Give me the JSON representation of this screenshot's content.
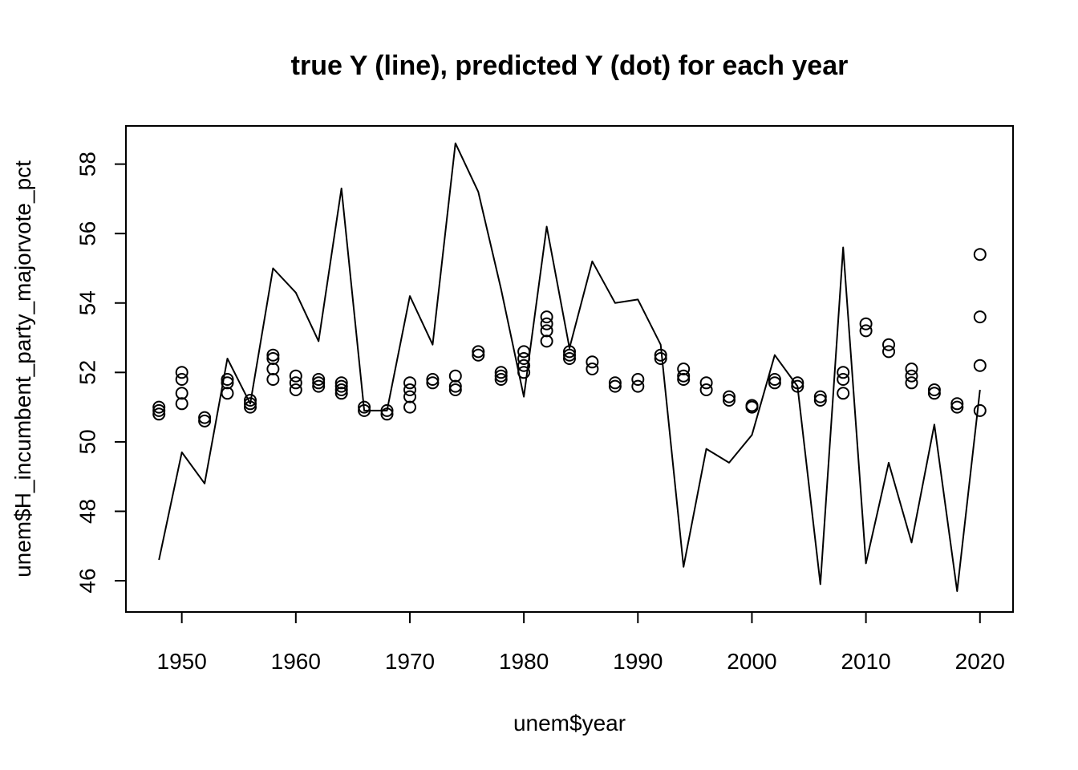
{
  "chart_data": {
    "type": "line",
    "title": "true Y (line), predicted Y (dot) for each year",
    "xlabel": "unem$year",
    "ylabel": "unem$H_incumbent_party_majorvote_pct",
    "xlim": [
      1945.1,
      2022.9
    ],
    "ylim": [
      45.1,
      59.1
    ],
    "x_ticks": [
      1950,
      1960,
      1970,
      1980,
      1990,
      2000,
      2010,
      2020
    ],
    "y_ticks": [
      46,
      48,
      50,
      52,
      54,
      56,
      58
    ],
    "legend": "none",
    "grid": false,
    "series": [
      {
        "kind": "line",
        "x": [
          1948,
          1950,
          1952,
          1954,
          1956,
          1958,
          1960,
          1962,
          1964,
          1966,
          1968,
          1970,
          1972,
          1974,
          1976,
          1978,
          1980,
          1982,
          1984,
          1986,
          1988,
          1990,
          1992,
          1994,
          1996,
          1998,
          2000,
          2002,
          2004,
          2006,
          2008,
          2010,
          2012,
          2014,
          2016,
          2018,
          2020
        ],
        "values": [
          46.6,
          49.7,
          48.8,
          52.4,
          51.1,
          55.0,
          54.3,
          52.9,
          57.3,
          50.9,
          50.9,
          54.2,
          52.8,
          58.6,
          57.2,
          54.4,
          51.3,
          56.2,
          52.7,
          55.2,
          54.0,
          54.1,
          52.8,
          46.4,
          49.8,
          49.4,
          50.2,
          52.5,
          51.6,
          45.9,
          55.6,
          46.5,
          49.4,
          47.1,
          50.5,
          45.7,
          51.5
        ]
      },
      {
        "kind": "points",
        "points": [
          [
            1948,
            50.8
          ],
          [
            1948,
            50.9
          ],
          [
            1948,
            51.0
          ],
          [
            1950,
            51.1
          ],
          [
            1950,
            51.4
          ],
          [
            1950,
            51.8
          ],
          [
            1950,
            52.0
          ],
          [
            1952,
            50.6
          ],
          [
            1952,
            50.7
          ],
          [
            1954,
            51.4
          ],
          [
            1954,
            51.7
          ],
          [
            1954,
            51.8
          ],
          [
            1956,
            51.0
          ],
          [
            1956,
            51.1
          ],
          [
            1956,
            51.2
          ],
          [
            1958,
            51.8
          ],
          [
            1958,
            52.1
          ],
          [
            1958,
            52.4
          ],
          [
            1958,
            52.5
          ],
          [
            1960,
            51.5
          ],
          [
            1960,
            51.7
          ],
          [
            1960,
            51.9
          ],
          [
            1962,
            51.6
          ],
          [
            1962,
            51.7
          ],
          [
            1962,
            51.8
          ],
          [
            1964,
            51.4
          ],
          [
            1964,
            51.5
          ],
          [
            1964,
            51.6
          ],
          [
            1964,
            51.7
          ],
          [
            1966,
            50.9
          ],
          [
            1966,
            51.0
          ],
          [
            1968,
            50.8
          ],
          [
            1968,
            50.9
          ],
          [
            1970,
            51.0
          ],
          [
            1970,
            51.3
          ],
          [
            1970,
            51.5
          ],
          [
            1970,
            51.7
          ],
          [
            1972,
            51.7
          ],
          [
            1972,
            51.8
          ],
          [
            1974,
            51.5
          ],
          [
            1974,
            51.6
          ],
          [
            1974,
            51.9
          ],
          [
            1976,
            52.5
          ],
          [
            1976,
            52.6
          ],
          [
            1978,
            51.8
          ],
          [
            1978,
            51.9
          ],
          [
            1978,
            52.0
          ],
          [
            1980,
            52.0
          ],
          [
            1980,
            52.2
          ],
          [
            1980,
            52.4
          ],
          [
            1980,
            52.6
          ],
          [
            1982,
            52.9
          ],
          [
            1982,
            53.2
          ],
          [
            1982,
            53.4
          ],
          [
            1982,
            53.6
          ],
          [
            1984,
            52.4
          ],
          [
            1984,
            52.5
          ],
          [
            1984,
            52.6
          ],
          [
            1986,
            52.1
          ],
          [
            1986,
            52.3
          ],
          [
            1988,
            51.6
          ],
          [
            1988,
            51.7
          ],
          [
            1990,
            51.6
          ],
          [
            1990,
            51.8
          ],
          [
            1992,
            52.4
          ],
          [
            1992,
            52.5
          ],
          [
            1994,
            51.8
          ],
          [
            1994,
            51.9
          ],
          [
            1994,
            52.1
          ],
          [
            1996,
            51.5
          ],
          [
            1996,
            51.7
          ],
          [
            1998,
            51.2
          ],
          [
            1998,
            51.3
          ],
          [
            2000,
            51.0
          ],
          [
            2000,
            51.05
          ],
          [
            2002,
            51.7
          ],
          [
            2002,
            51.8
          ],
          [
            2004,
            51.6
          ],
          [
            2004,
            51.7
          ],
          [
            2006,
            51.2
          ],
          [
            2006,
            51.3
          ],
          [
            2008,
            51.4
          ],
          [
            2008,
            51.8
          ],
          [
            2008,
            52.0
          ],
          [
            2010,
            53.2
          ],
          [
            2010,
            53.4
          ],
          [
            2012,
            52.6
          ],
          [
            2012,
            52.8
          ],
          [
            2014,
            51.7
          ],
          [
            2014,
            51.9
          ],
          [
            2014,
            52.1
          ],
          [
            2016,
            51.4
          ],
          [
            2016,
            51.5
          ],
          [
            2018,
            51.0
          ],
          [
            2018,
            51.1
          ],
          [
            2020,
            50.9
          ],
          [
            2020,
            52.2
          ],
          [
            2020,
            53.6
          ],
          [
            2020,
            55.4
          ]
        ]
      }
    ]
  }
}
